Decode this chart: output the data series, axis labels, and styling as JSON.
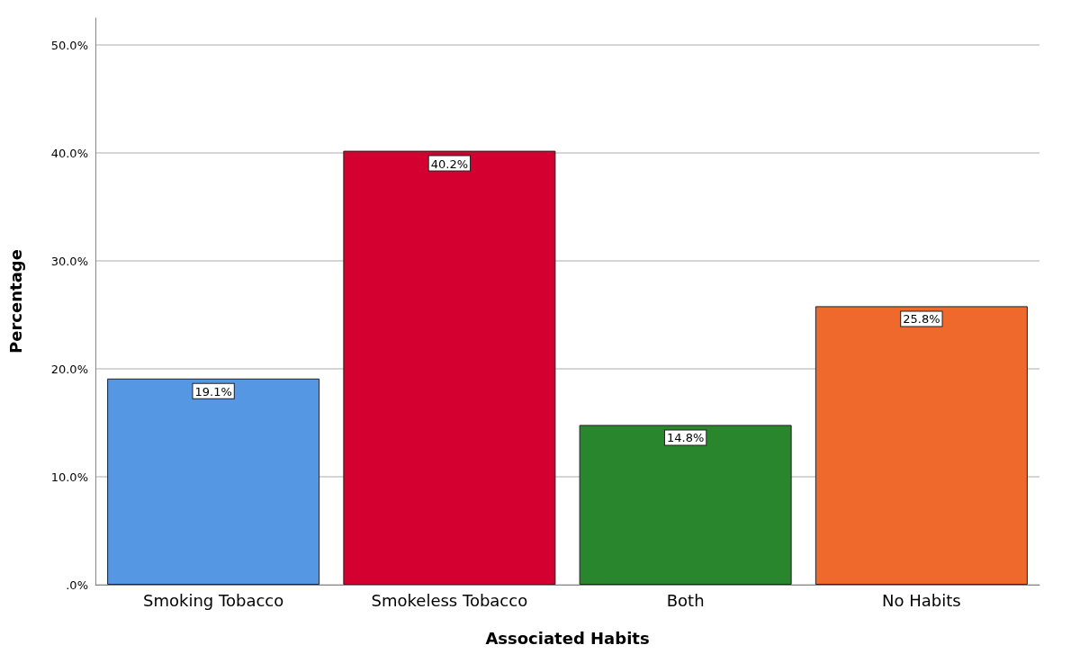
{
  "chart_data": {
    "type": "bar",
    "xlabel": "Associated Habits",
    "ylabel": "Percentage",
    "categories": [
      "Smoking Tobacco",
      "Smokeless Tobacco",
      "Both",
      "No Habits"
    ],
    "values": [
      19.1,
      40.2,
      14.8,
      25.8
    ],
    "colors": [
      "#5597e2",
      "#d40030",
      "#2a862d",
      "#f0692c"
    ],
    "value_labels": [
      "19.1%",
      "40.2%",
      "14.8%",
      "25.8%"
    ],
    "ylim": [
      0,
      52.5
    ],
    "yticks": [
      {
        "value": 0,
        "label": ".0%"
      },
      {
        "value": 10,
        "label": "10.0%"
      },
      {
        "value": 20,
        "label": "20.0%"
      },
      {
        "value": 30,
        "label": "30.0%"
      },
      {
        "value": 40,
        "label": "40.0%"
      },
      {
        "value": 50,
        "label": "50.0%"
      }
    ],
    "grid": "y"
  }
}
